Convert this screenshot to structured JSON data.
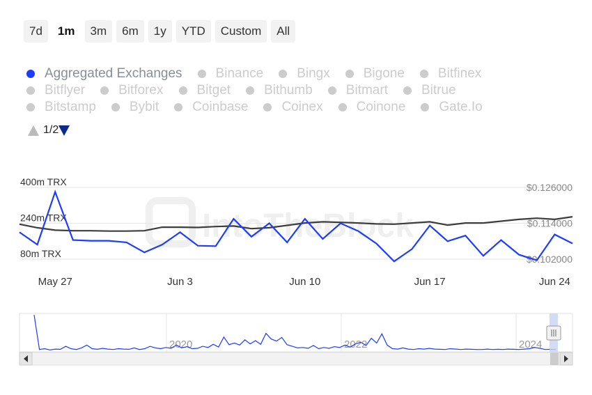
{
  "range_buttons": [
    "7d",
    "1m",
    "3m",
    "6m",
    "1y",
    "YTD",
    "Custom",
    "All"
  ],
  "active_range": "1m",
  "legend": {
    "rows": [
      [
        "Aggregated Exchanges",
        "Binance",
        "Bingx",
        "Bigone",
        "Bitfinex"
      ],
      [
        "Bitflyer",
        "Bitforex",
        "Bitget",
        "Bithumb",
        "Bitmart",
        "Bitrue"
      ],
      [
        "Bitstamp",
        "Bybit",
        "Coinbase",
        "Coinex",
        "Coinone",
        "Gate.Io"
      ]
    ],
    "active": "Aggregated Exchanges"
  },
  "pager": {
    "label": "1/2"
  },
  "watermark": "IntoTheBlock",
  "colors": {
    "series_volume": "#1c3cff",
    "series_price": "#3d3d3d",
    "grid": "#e6e6e6",
    "legend_active_dot": "#1c3cff",
    "legend_inactive": "#cccccc"
  },
  "chart_data": {
    "type": "line",
    "x": [
      "May 25",
      "May 26",
      "May 27",
      "May 28",
      "May 29",
      "May 30",
      "May 31",
      "Jun 1",
      "Jun 2",
      "Jun 3",
      "Jun 4",
      "Jun 5",
      "Jun 6",
      "Jun 7",
      "Jun 8",
      "Jun 9",
      "Jun 10",
      "Jun 11",
      "Jun 12",
      "Jun 13",
      "Jun 14",
      "Jun 15",
      "Jun 16",
      "Jun 17",
      "Jun 18",
      "Jun 19",
      "Jun 20",
      "Jun 21",
      "Jun 22",
      "Jun 23",
      "Jun 24",
      "Jun 25"
    ],
    "x_tick_labels": [
      "May 27",
      "Jun 3",
      "Jun 10",
      "Jun 17",
      "Jun 24"
    ],
    "y_left": {
      "ticks": [
        "400m TRX",
        "240m TRX",
        "80m TRX"
      ],
      "range": [
        80,
        400
      ],
      "unit": "m TRX"
    },
    "y_right": {
      "ticks": [
        "$0.126000",
        "$0.114000",
        "$0.102000"
      ],
      "range": [
        0.102,
        0.126
      ]
    },
    "series": [
      {
        "axis": "left",
        "values": [
          200,
          145,
          380,
          165,
          162,
          162,
          155,
          110,
          145,
          200,
          140,
          138,
          260,
          180,
          240,
          155,
          260,
          170,
          240,
          205,
          150,
          70,
          125,
          230,
          160,
          185,
          95,
          165,
          100,
          75,
          190,
          150
        ]
      },
      {
        "axis": "right",
        "values": [
          0.1137,
          0.1125,
          0.1117,
          0.1115,
          0.1115,
          0.1114,
          0.1114,
          0.1115,
          0.1127,
          0.1127,
          0.1126,
          0.1129,
          0.1131,
          0.1122,
          0.1125,
          0.1133,
          0.1141,
          0.1145,
          0.1143,
          0.1141,
          0.1138,
          0.1137,
          0.1141,
          0.1145,
          0.1134,
          0.1141,
          0.1141,
          0.1147,
          0.1153,
          0.1157,
          0.1153,
          0.1162
        ]
      }
    ],
    "navigator": {
      "year_labels": [
        "2020",
        "2022",
        "2024"
      ],
      "values": [
        900,
        40,
        60,
        30,
        50,
        45,
        120,
        60,
        40,
        80,
        150,
        60,
        45,
        70,
        50,
        40,
        60,
        50,
        45,
        80,
        40,
        60,
        120,
        80,
        60,
        90,
        70,
        150,
        80,
        110,
        60,
        70,
        120,
        90,
        170,
        100,
        350,
        160,
        200,
        150,
        280,
        180,
        260,
        170,
        440,
        300,
        250,
        340,
        160,
        120,
        80,
        90,
        70,
        140,
        60,
        90,
        70,
        110,
        90,
        150,
        100,
        180,
        220,
        140,
        320,
        200,
        430,
        150,
        60,
        50,
        80,
        50,
        40,
        60,
        50,
        70,
        50,
        45,
        40,
        60,
        50,
        40,
        50,
        45,
        40,
        40,
        50,
        40,
        45,
        40,
        50,
        45,
        40,
        50,
        60,
        90,
        70,
        40,
        45,
        40
      ]
    }
  }
}
